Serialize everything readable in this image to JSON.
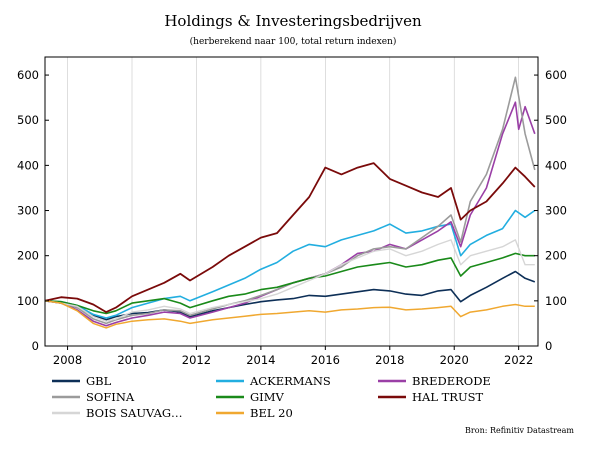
{
  "chart_data": {
    "type": "line",
    "title": "Holdings & Investeringsbedrijven",
    "subtitle": "(herberekend naar 100, total return indexen)",
    "source": "Bron: Refinitiv Datastream",
    "xlim": [
      2007.3,
      2022.6
    ],
    "ylim": [
      0,
      640
    ],
    "x_ticks": [
      2008,
      2010,
      2012,
      2014,
      2016,
      2018,
      2020,
      2022
    ],
    "x_tick_labels": [
      "2008",
      "2010",
      "2012",
      "2014",
      "2016",
      "2018",
      "2020",
      "2022"
    ],
    "y_ticks": [
      0,
      100,
      200,
      300,
      400,
      500,
      600
    ],
    "y_tick_labels": [
      "0",
      "100",
      "200",
      "300",
      "400",
      "500",
      "600"
    ],
    "grid": "vertical",
    "legend_position": "bottom",
    "series": [
      {
        "name": "GBL",
        "color": "#0d2f57",
        "width": 1.6,
        "x": [
          2007.3,
          2007.8,
          2008.3,
          2008.8,
          2009.2,
          2009.5,
          2010.0,
          2010.5,
          2011.0,
          2011.5,
          2011.8,
          2012.5,
          2013.0,
          2013.5,
          2014.0,
          2014.5,
          2015.0,
          2015.5,
          2016.0,
          2016.5,
          2017.0,
          2017.5,
          2018.0,
          2018.5,
          2019.0,
          2019.5,
          2019.9,
          2020.2,
          2020.5,
          2021.0,
          2021.5,
          2021.9,
          2022.2,
          2022.5
        ],
        "values": [
          100,
          95,
          85,
          68,
          58,
          65,
          72,
          74,
          80,
          75,
          65,
          78,
          85,
          92,
          98,
          102,
          105,
          112,
          110,
          115,
          120,
          125,
          122,
          115,
          112,
          122,
          125,
          98,
          112,
          130,
          150,
          165,
          150,
          142
        ]
      },
      {
        "name": "ACKERMANS",
        "color": "#22aee0",
        "width": 1.6,
        "x": [
          2007.3,
          2007.8,
          2008.3,
          2008.8,
          2009.2,
          2009.5,
          2010.0,
          2010.5,
          2011.0,
          2011.5,
          2011.8,
          2012.5,
          2013.0,
          2013.5,
          2014.0,
          2014.5,
          2015.0,
          2015.5,
          2016.0,
          2016.5,
          2017.0,
          2017.5,
          2018.0,
          2018.5,
          2019.0,
          2019.5,
          2019.9,
          2020.2,
          2020.5,
          2021.0,
          2021.5,
          2021.9,
          2022.2,
          2022.5
        ],
        "values": [
          100,
          98,
          90,
          70,
          62,
          68,
          85,
          95,
          105,
          110,
          100,
          120,
          135,
          150,
          170,
          185,
          210,
          225,
          220,
          235,
          245,
          255,
          270,
          250,
          255,
          265,
          270,
          200,
          225,
          245,
          260,
          300,
          285,
          300
        ]
      },
      {
        "name": "BREDERODE",
        "color": "#9a3fa6",
        "width": 1.6,
        "x": [
          2007.3,
          2007.8,
          2008.3,
          2008.8,
          2009.2,
          2009.5,
          2010.0,
          2010.5,
          2011.0,
          2011.5,
          2011.8,
          2012.5,
          2013.0,
          2013.5,
          2014.0,
          2014.5,
          2015.0,
          2015.5,
          2016.0,
          2016.5,
          2017.0,
          2017.5,
          2018.0,
          2018.5,
          2019.0,
          2019.5,
          2019.9,
          2020.2,
          2020.5,
          2021.0,
          2021.5,
          2021.9,
          2022.0,
          2022.2,
          2022.5
        ],
        "values": [
          100,
          95,
          80,
          55,
          45,
          52,
          62,
          68,
          75,
          72,
          62,
          75,
          85,
          95,
          110,
          125,
          140,
          150,
          160,
          180,
          205,
          210,
          225,
          215,
          235,
          255,
          275,
          220,
          290,
          350,
          470,
          540,
          480,
          530,
          470
        ]
      },
      {
        "name": "SOFINA",
        "color": "#9b9b9b",
        "width": 1.6,
        "x": [
          2007.3,
          2007.8,
          2008.3,
          2008.8,
          2009.2,
          2009.5,
          2010.0,
          2010.5,
          2011.0,
          2011.5,
          2011.8,
          2012.5,
          2013.0,
          2013.5,
          2014.0,
          2014.5,
          2015.0,
          2015.5,
          2016.0,
          2016.5,
          2017.0,
          2017.5,
          2018.0,
          2018.5,
          2019.0,
          2019.5,
          2019.9,
          2020.2,
          2020.5,
          2021.0,
          2021.5,
          2021.9,
          2022.2,
          2022.5
        ],
        "values": [
          100,
          96,
          85,
          60,
          50,
          58,
          68,
          72,
          80,
          78,
          68,
          82,
          92,
          100,
          112,
          125,
          140,
          150,
          160,
          175,
          200,
          215,
          220,
          215,
          240,
          265,
          290,
          230,
          320,
          380,
          480,
          595,
          470,
          390
        ]
      },
      {
        "name": "GIMV",
        "color": "#1a8a1a",
        "width": 1.6,
        "x": [
          2007.3,
          2007.8,
          2008.3,
          2008.8,
          2009.2,
          2009.5,
          2010.0,
          2010.5,
          2011.0,
          2011.5,
          2011.8,
          2012.5,
          2013.0,
          2013.5,
          2014.0,
          2014.5,
          2015.0,
          2015.5,
          2016.0,
          2016.5,
          2017.0,
          2017.5,
          2018.0,
          2018.5,
          2019.0,
          2019.5,
          2019.9,
          2020.2,
          2020.5,
          2021.0,
          2021.5,
          2021.9,
          2022.2,
          2022.5
        ],
        "values": [
          100,
          98,
          90,
          78,
          72,
          78,
          95,
          100,
          105,
          95,
          85,
          100,
          110,
          115,
          125,
          130,
          140,
          150,
          155,
          165,
          175,
          180,
          185,
          175,
          180,
          190,
          195,
          155,
          175,
          185,
          195,
          205,
          200,
          200
        ]
      },
      {
        "name": "HAL TRUST",
        "color": "#7a0a0a",
        "width": 1.8,
        "x": [
          2007.3,
          2007.8,
          2008.3,
          2008.8,
          2009.2,
          2009.5,
          2010.0,
          2010.5,
          2011.0,
          2011.5,
          2011.8,
          2012.5,
          2013.0,
          2013.5,
          2014.0,
          2014.5,
          2015.0,
          2015.5,
          2016.0,
          2016.5,
          2017.0,
          2017.5,
          2018.0,
          2018.5,
          2019.0,
          2019.5,
          2019.9,
          2020.2,
          2020.5,
          2021.0,
          2021.5,
          2021.9,
          2022.2,
          2022.5
        ],
        "values": [
          100,
          108,
          105,
          92,
          75,
          85,
          110,
          125,
          140,
          160,
          145,
          175,
          200,
          220,
          240,
          250,
          290,
          330,
          395,
          380,
          395,
          405,
          370,
          355,
          340,
          330,
          350,
          280,
          300,
          320,
          360,
          395,
          375,
          352
        ]
      },
      {
        "name": "BOIS SAUVAG…",
        "color": "#d6d6d6",
        "width": 1.4,
        "x": [
          2007.3,
          2007.8,
          2008.3,
          2008.8,
          2009.2,
          2009.5,
          2010.0,
          2010.5,
          2011.0,
          2011.5,
          2011.8,
          2012.5,
          2013.0,
          2013.5,
          2014.0,
          2014.5,
          2015.0,
          2015.5,
          2016.0,
          2016.5,
          2017.0,
          2017.5,
          2018.0,
          2018.5,
          2019.0,
          2019.5,
          2019.9,
          2020.2,
          2020.5,
          2021.0,
          2021.5,
          2021.9,
          2022.2,
          2022.5
        ],
        "values": [
          100,
          95,
          88,
          65,
          55,
          60,
          75,
          80,
          88,
          82,
          72,
          85,
          92,
          98,
          105,
          115,
          130,
          145,
          160,
          180,
          195,
          210,
          215,
          200,
          210,
          225,
          235,
          180,
          200,
          210,
          220,
          235,
          180,
          180
        ]
      },
      {
        "name": "BEL 20",
        "color": "#f0a830",
        "width": 1.5,
        "x": [
          2007.3,
          2007.8,
          2008.3,
          2008.8,
          2009.2,
          2009.5,
          2010.0,
          2010.5,
          2011.0,
          2011.5,
          2011.8,
          2012.5,
          2013.0,
          2013.5,
          2014.0,
          2014.5,
          2015.0,
          2015.5,
          2016.0,
          2016.5,
          2017.0,
          2017.5,
          2018.0,
          2018.5,
          2019.0,
          2019.5,
          2019.9,
          2020.2,
          2020.5,
          2021.0,
          2021.5,
          2021.9,
          2022.2,
          2022.5
        ],
        "values": [
          100,
          95,
          78,
          50,
          40,
          48,
          55,
          58,
          60,
          55,
          50,
          58,
          62,
          66,
          70,
          72,
          75,
          78,
          75,
          80,
          82,
          85,
          86,
          80,
          82,
          85,
          88,
          65,
          75,
          80,
          88,
          92,
          88,
          88
        ]
      }
    ]
  }
}
